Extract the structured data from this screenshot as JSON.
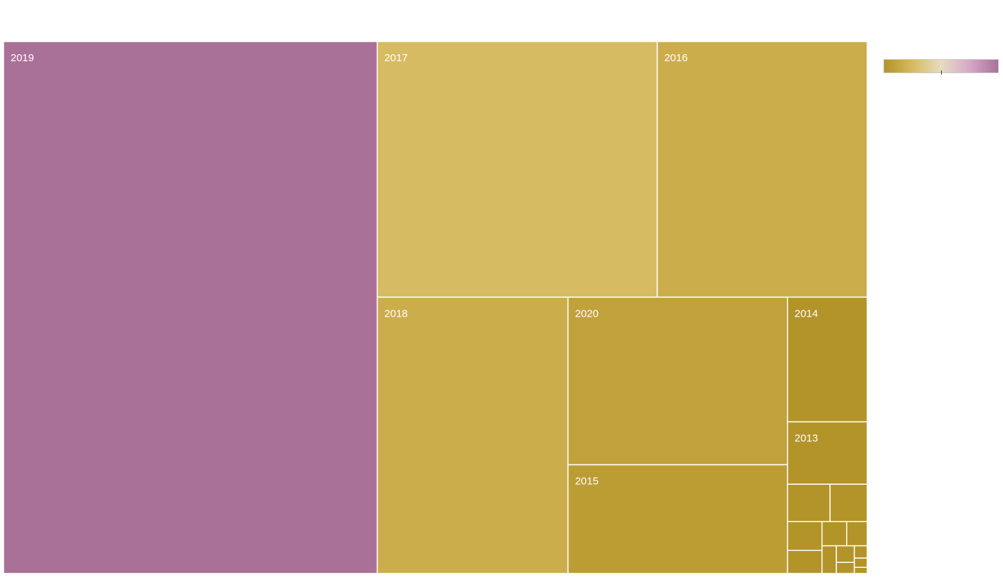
{
  "chart_data": {
    "type": "treemap",
    "title": "",
    "tiles": [
      {
        "label": "2019",
        "value": 1000,
        "color": "#aa7198"
      },
      {
        "label": "2017",
        "value": 360,
        "color": "#d6bb62"
      },
      {
        "label": "2016",
        "value": 270,
        "color": "#ccad4c"
      },
      {
        "label": "2018",
        "value": 265,
        "color": "#ccad4c"
      },
      {
        "label": "2020",
        "value": 185,
        "color": "#c1a13b"
      },
      {
        "label": "2015",
        "value": 120,
        "color": "#bb9d34"
      },
      {
        "label": "2014",
        "value": 50,
        "color": "#b39428"
      },
      {
        "label": "2013",
        "value": 25,
        "color": "#b39428"
      },
      {
        "label": "",
        "value": 8,
        "color": "#b39428"
      },
      {
        "label": "",
        "value": 7,
        "color": "#b39428"
      },
      {
        "label": "",
        "value": 5,
        "color": "#b39428"
      },
      {
        "label": "",
        "value": 4,
        "color": "#b39428"
      },
      {
        "label": "",
        "value": 3,
        "color": "#b39428"
      },
      {
        "label": "",
        "value": 2.5,
        "color": "#b39428"
      },
      {
        "label": "",
        "value": 2,
        "color": "#b39428"
      },
      {
        "label": "",
        "value": 1.5,
        "color": "#b39428"
      },
      {
        "label": "",
        "value": 1,
        "color": "#b39428"
      },
      {
        "label": "",
        "value": 0.8,
        "color": "#b39428"
      },
      {
        "label": "",
        "value": 0.6,
        "color": "#b39428"
      },
      {
        "label": "",
        "value": 0.4,
        "color": "#b39428"
      }
    ],
    "color_scale": {
      "stops": [
        "#b39428",
        "#d6bb62",
        "#e8dcc0",
        "#d6a8c8",
        "#aa7198"
      ],
      "marker_position": 0.5
    },
    "legend": {
      "placement": "top-right",
      "labels": []
    }
  }
}
